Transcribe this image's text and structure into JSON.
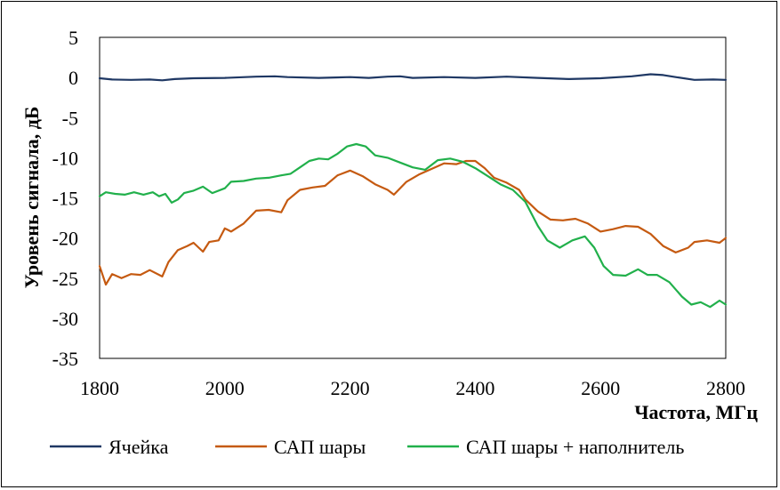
{
  "chart_data": {
    "type": "line",
    "title": "",
    "xlabel": "Частота, МГц",
    "ylabel": "Уровень сигнала, дБ",
    "xlim": [
      1800,
      2800
    ],
    "ylim": [
      -35,
      5
    ],
    "x_ticks": [
      1800,
      2000,
      2200,
      2400,
      2600,
      2800
    ],
    "y_ticks": [
      5,
      0,
      -5,
      -10,
      -15,
      -20,
      -25,
      -30,
      -35
    ],
    "x_tick_labels": [
      "1800",
      "2000",
      "2200",
      "2400",
      "2600",
      "2800"
    ],
    "y_tick_labels": [
      "5",
      "0",
      "-5",
      "-10",
      "-15",
      "-20",
      "-25",
      "-30",
      "-35"
    ],
    "grid": false,
    "legend_position": "bottom",
    "series": [
      {
        "name": "Ячейка",
        "color": "#1f3864",
        "points": [
          [
            1800,
            -0.1
          ],
          [
            1820,
            -0.25
          ],
          [
            1850,
            -0.3
          ],
          [
            1880,
            -0.25
          ],
          [
            1900,
            -0.35
          ],
          [
            1920,
            -0.2
          ],
          [
            1950,
            -0.1
          ],
          [
            2000,
            -0.05
          ],
          [
            2050,
            0.1
          ],
          [
            2080,
            0.15
          ],
          [
            2100,
            0.05
          ],
          [
            2150,
            -0.05
          ],
          [
            2200,
            0.05
          ],
          [
            2230,
            -0.05
          ],
          [
            2260,
            0.1
          ],
          [
            2280,
            0.15
          ],
          [
            2300,
            -0.05
          ],
          [
            2350,
            0.05
          ],
          [
            2400,
            -0.05
          ],
          [
            2450,
            0.1
          ],
          [
            2500,
            -0.05
          ],
          [
            2550,
            -0.2
          ],
          [
            2600,
            -0.1
          ],
          [
            2650,
            0.15
          ],
          [
            2680,
            0.4
          ],
          [
            2700,
            0.3
          ],
          [
            2720,
            0.05
          ],
          [
            2750,
            -0.3
          ],
          [
            2780,
            -0.25
          ],
          [
            2800,
            -0.3
          ]
        ]
      },
      {
        "name": "САП шары",
        "color": "#c55a11",
        "points": [
          [
            1800,
            -23.5
          ],
          [
            1810,
            -25.8
          ],
          [
            1820,
            -24.5
          ],
          [
            1835,
            -25
          ],
          [
            1850,
            -24.5
          ],
          [
            1865,
            -24.6
          ],
          [
            1880,
            -24
          ],
          [
            1900,
            -24.8
          ],
          [
            1910,
            -23
          ],
          [
            1925,
            -21.5
          ],
          [
            1940,
            -21
          ],
          [
            1950,
            -20.6
          ],
          [
            1965,
            -21.7
          ],
          [
            1975,
            -20.5
          ],
          [
            1990,
            -20.3
          ],
          [
            2000,
            -18.8
          ],
          [
            2010,
            -19.2
          ],
          [
            2030,
            -18.2
          ],
          [
            2050,
            -16.6
          ],
          [
            2070,
            -16.5
          ],
          [
            2090,
            -16.8
          ],
          [
            2100,
            -15.3
          ],
          [
            2120,
            -14
          ],
          [
            2140,
            -13.7
          ],
          [
            2160,
            -13.5
          ],
          [
            2180,
            -12.2
          ],
          [
            2200,
            -11.6
          ],
          [
            2220,
            -12.3
          ],
          [
            2240,
            -13.3
          ],
          [
            2260,
            -14
          ],
          [
            2270,
            -14.6
          ],
          [
            2290,
            -13
          ],
          [
            2310,
            -12.1
          ],
          [
            2330,
            -11.4
          ],
          [
            2350,
            -10.7
          ],
          [
            2370,
            -10.8
          ],
          [
            2385,
            -10.4
          ],
          [
            2400,
            -10.4
          ],
          [
            2415,
            -11.3
          ],
          [
            2430,
            -12.5
          ],
          [
            2450,
            -13.1
          ],
          [
            2470,
            -14
          ],
          [
            2480,
            -15.2
          ],
          [
            2500,
            -16.7
          ],
          [
            2520,
            -17.7
          ],
          [
            2540,
            -17.8
          ],
          [
            2560,
            -17.6
          ],
          [
            2580,
            -18.2
          ],
          [
            2600,
            -19.2
          ],
          [
            2620,
            -18.9
          ],
          [
            2640,
            -18.5
          ],
          [
            2660,
            -18.6
          ],
          [
            2680,
            -19.5
          ],
          [
            2700,
            -21
          ],
          [
            2720,
            -21.8
          ],
          [
            2740,
            -21.2
          ],
          [
            2750,
            -20.5
          ],
          [
            2770,
            -20.3
          ],
          [
            2790,
            -20.6
          ],
          [
            2800,
            -20
          ]
        ]
      },
      {
        "name": "САП шары + наполнитель",
        "color": "#21b04b",
        "points": [
          [
            1800,
            -14.8
          ],
          [
            1810,
            -14.3
          ],
          [
            1825,
            -14.5
          ],
          [
            1840,
            -14.6
          ],
          [
            1855,
            -14.3
          ],
          [
            1870,
            -14.6
          ],
          [
            1885,
            -14.3
          ],
          [
            1895,
            -14.8
          ],
          [
            1905,
            -14.5
          ],
          [
            1915,
            -15.6
          ],
          [
            1925,
            -15.2
          ],
          [
            1935,
            -14.4
          ],
          [
            1950,
            -14.1
          ],
          [
            1965,
            -13.6
          ],
          [
            1980,
            -14.4
          ],
          [
            2000,
            -13.8
          ],
          [
            2010,
            -13
          ],
          [
            2030,
            -12.9
          ],
          [
            2050,
            -12.6
          ],
          [
            2070,
            -12.5
          ],
          [
            2090,
            -12.2
          ],
          [
            2105,
            -12
          ],
          [
            2120,
            -11.2
          ],
          [
            2135,
            -10.4
          ],
          [
            2150,
            -10.1
          ],
          [
            2165,
            -10.2
          ],
          [
            2180,
            -9.5
          ],
          [
            2195,
            -8.6
          ],
          [
            2210,
            -8.3
          ],
          [
            2225,
            -8.6
          ],
          [
            2240,
            -9.7
          ],
          [
            2260,
            -10
          ],
          [
            2280,
            -10.6
          ],
          [
            2300,
            -11.2
          ],
          [
            2320,
            -11.5
          ],
          [
            2340,
            -10.3
          ],
          [
            2360,
            -10.1
          ],
          [
            2380,
            -10.5
          ],
          [
            2400,
            -11.3
          ],
          [
            2420,
            -12.3
          ],
          [
            2440,
            -13.3
          ],
          [
            2460,
            -14
          ],
          [
            2480,
            -15.5
          ],
          [
            2500,
            -18.5
          ],
          [
            2515,
            -20.3
          ],
          [
            2535,
            -21.2
          ],
          [
            2555,
            -20.3
          ],
          [
            2575,
            -19.8
          ],
          [
            2590,
            -21.2
          ],
          [
            2605,
            -23.5
          ],
          [
            2620,
            -24.6
          ],
          [
            2640,
            -24.7
          ],
          [
            2660,
            -23.9
          ],
          [
            2675,
            -24.6
          ],
          [
            2690,
            -24.6
          ],
          [
            2710,
            -25.5
          ],
          [
            2730,
            -27.3
          ],
          [
            2745,
            -28.3
          ],
          [
            2760,
            -28
          ],
          [
            2775,
            -28.6
          ],
          [
            2790,
            -27.8
          ],
          [
            2800,
            -28.3
          ]
        ]
      }
    ]
  }
}
